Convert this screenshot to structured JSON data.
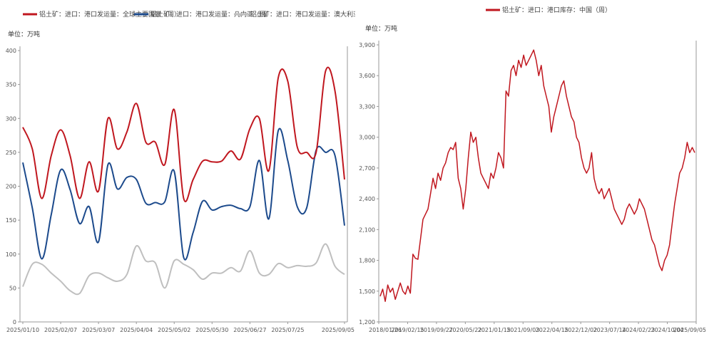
{
  "chart_data": [
    {
      "type": "line",
      "unit": "单位：万吨",
      "ylim": [
        0,
        400
      ],
      "yticks": [
        0,
        50,
        100,
        150,
        200,
        250,
        300,
        350,
        400
      ],
      "xtick_labels": [
        "2025/01/10",
        "2025/02/07",
        "2025/03/07",
        "2025/04/04",
        "2025/05/02",
        "2025/05/30",
        "2025/06/27",
        "2025/07/25",
        "2025/09/05"
      ],
      "x": [
        "2025/01/10",
        "2025/01/17",
        "2025/01/24",
        "2025/01/31",
        "2025/02/07",
        "2025/02/14",
        "2025/02/21",
        "2025/02/28",
        "2025/03/07",
        "2025/03/14",
        "2025/03/21",
        "2025/03/28",
        "2025/04/04",
        "2025/04/11",
        "2025/04/18",
        "2025/04/25",
        "2025/05/02",
        "2025/05/09",
        "2025/05/16",
        "2025/05/23",
        "2025/05/30",
        "2025/06/06",
        "2025/06/13",
        "2025/06/20",
        "2025/06/27",
        "2025/07/04",
        "2025/07/11",
        "2025/07/18",
        "2025/07/25",
        "2025/08/01",
        "2025/08/08",
        "2025/08/15",
        "2025/08/22",
        "2025/08/29",
        "2025/09/05"
      ],
      "grid": false,
      "legend_position": "top-left",
      "series": [
        {
          "name": "铝土矿：进口：港口发运量：全球主要国家（周）",
          "color": "#c0171f",
          "values": [
            287,
            255,
            182,
            245,
            283,
            245,
            182,
            236,
            193,
            300,
            255,
            280,
            322,
            265,
            265,
            232,
            313,
            182,
            210,
            237,
            236,
            237,
            252,
            240,
            285,
            300,
            223,
            360,
            355,
            258,
            250,
            250,
            370,
            340,
            210
          ]
        },
        {
          "name": "铝土矿：进口：港口发运量：几内亚（周）",
          "color": "#1c4a8c",
          "values": [
            235,
            168,
            93,
            158,
            224,
            195,
            145,
            170,
            118,
            232,
            196,
            213,
            210,
            175,
            176,
            177,
            222,
            95,
            132,
            178,
            165,
            170,
            172,
            167,
            170,
            238,
            152,
            282,
            238,
            170,
            168,
            253,
            250,
            245,
            142
          ]
        },
        {
          "name": "铝土矿：进口：港口发运量：澳大利亚（周）",
          "color": "#bfbfbf",
          "values": [
            52,
            85,
            85,
            72,
            60,
            46,
            42,
            68,
            72,
            65,
            60,
            70,
            112,
            90,
            87,
            50,
            90,
            85,
            77,
            63,
            72,
            72,
            80,
            75,
            105,
            72,
            70,
            86,
            80,
            83,
            82,
            87,
            115,
            82,
            70
          ]
        }
      ]
    },
    {
      "type": "line",
      "unit": "单位：万吨",
      "ylim": [
        1200,
        3900
      ],
      "yticks": [
        1200,
        1500,
        1800,
        2100,
        2400,
        2700,
        3000,
        3300,
        3600,
        3900
      ],
      "ytick_labels": [
        "1,200",
        "1,500",
        "1,800",
        "2,100",
        "2,400",
        "2,700",
        "3,000",
        "3,300",
        "3,600",
        "3,900"
      ],
      "xtick_labels": [
        "2018/01/26",
        "2019/02/15",
        "2019/09/27",
        "2020/05/22",
        "2021/01/15",
        "2021/09/03",
        "2022/04/15",
        "2022/12/02",
        "2023/07/14",
        "2024/02/23",
        "2024/10/04",
        "2025/09/05"
      ],
      "grid": false,
      "legend_position": "top-center",
      "series": [
        {
          "name": "铝土矿：进口：港口库存：中国（周）",
          "color": "#c0171f",
          "values": [
            1450,
            1520,
            1400,
            1560,
            1490,
            1530,
            1420,
            1500,
            1580,
            1500,
            1470,
            1550,
            1480,
            1860,
            1820,
            1810,
            2000,
            2200,
            2250,
            2300,
            2450,
            2600,
            2500,
            2650,
            2580,
            2700,
            2750,
            2850,
            2900,
            2880,
            2950,
            2600,
            2500,
            2300,
            2500,
            2800,
            3050,
            2950,
            3000,
            2800,
            2650,
            2600,
            2550,
            2500,
            2650,
            2600,
            2700,
            2850,
            2800,
            2700,
            3450,
            3400,
            3650,
            3700,
            3600,
            3750,
            3680,
            3800,
            3700,
            3750,
            3800,
            3850,
            3750,
            3600,
            3700,
            3500,
            3400,
            3300,
            3050,
            3200,
            3300,
            3400,
            3500,
            3550,
            3400,
            3300,
            3200,
            3150,
            3000,
            2950,
            2800,
            2700,
            2650,
            2700,
            2850,
            2600,
            2500,
            2450,
            2500,
            2400,
            2450,
            2500,
            2400,
            2300,
            2250,
            2200,
            2150,
            2200,
            2300,
            2350,
            2300,
            2250,
            2300,
            2400,
            2350,
            2300,
            2200,
            2100,
            2000,
            1950,
            1850,
            1750,
            1700,
            1800,
            1850,
            1950,
            2150,
            2350,
            2500,
            2650,
            2700,
            2800,
            2950,
            2850,
            2900,
            2850
          ]
        }
      ]
    }
  ]
}
